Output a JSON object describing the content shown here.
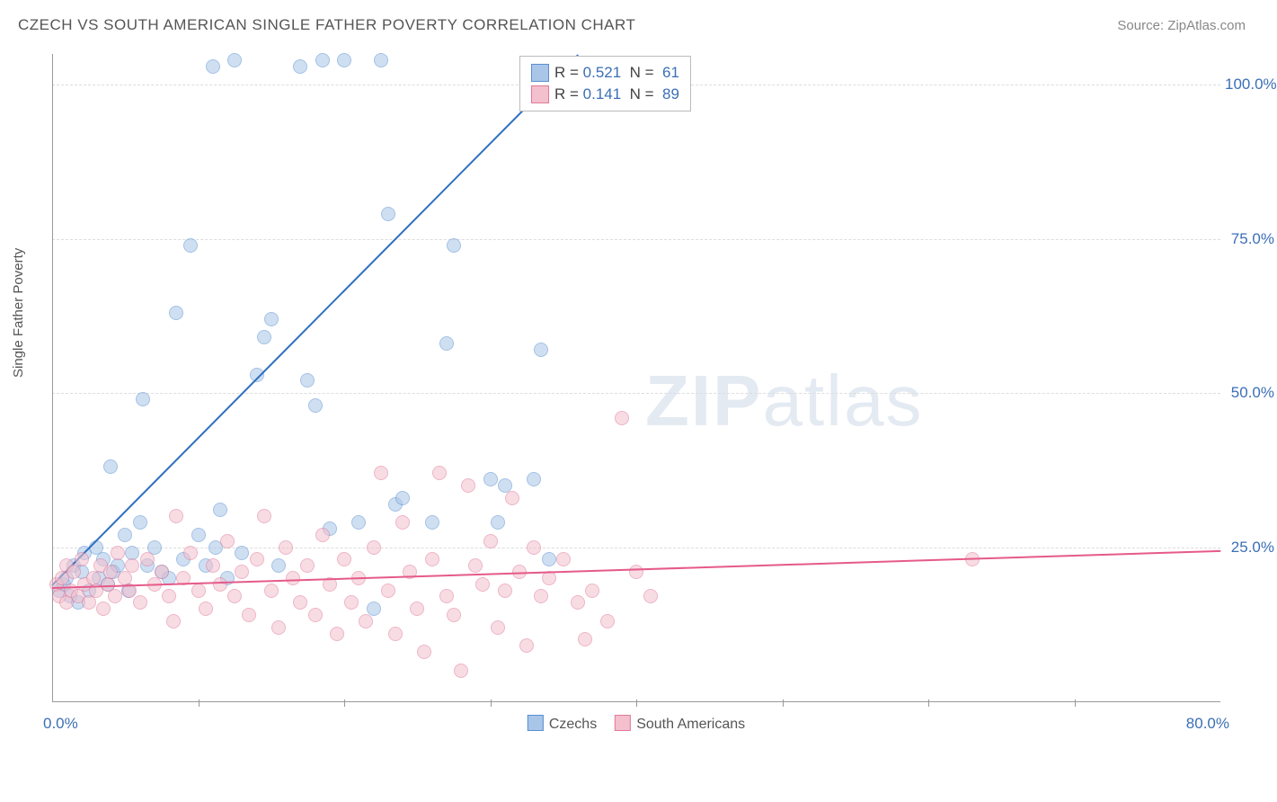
{
  "header": {
    "title": "CZECH VS SOUTH AMERICAN SINGLE FATHER POVERTY CORRELATION CHART",
    "source_prefix": "Source: ",
    "source_name": "ZipAtlas.com"
  },
  "chart": {
    "type": "scatter",
    "ylabel": "Single Father Poverty",
    "xlim": [
      0,
      80
    ],
    "ylim": [
      0,
      105
    ],
    "xtick_labels": [
      "0.0%",
      "80.0%"
    ],
    "xtick_positions": [
      0,
      80
    ],
    "xtick_minor": [
      10,
      20,
      30,
      40,
      50,
      60,
      70
    ],
    "ytick_labels": [
      "25.0%",
      "50.0%",
      "75.0%",
      "100.0%"
    ],
    "ytick_positions": [
      25,
      50,
      75,
      100
    ],
    "grid_color": "#dddddd",
    "axis_color": "#999999",
    "label_color": "#3b6fb6",
    "background_color": "#ffffff",
    "marker_radius": 8,
    "marker_opacity": 0.55,
    "watermark": {
      "zip": "ZIP",
      "atlas": "atlas"
    },
    "series": [
      {
        "name": "Czechs",
        "color_fill": "#a9c6e8",
        "color_stroke": "#5a8fd0",
        "trend_color": "#2e6fc0",
        "trend": {
          "x1": 0,
          "y1": 19,
          "x2": 36,
          "y2": 105
        },
        "r_label": "R =",
        "r_value": "0.521",
        "n_label": "N =",
        "n_value": "61",
        "points": [
          [
            0.5,
            18
          ],
          [
            0.8,
            19
          ],
          [
            1,
            20
          ],
          [
            1.2,
            17
          ],
          [
            1.5,
            22
          ],
          [
            1.8,
            16
          ],
          [
            2,
            21
          ],
          [
            2.2,
            24
          ],
          [
            2.5,
            18
          ],
          [
            3,
            25
          ],
          [
            3.2,
            20
          ],
          [
            3.5,
            23
          ],
          [
            3.8,
            19
          ],
          [
            4,
            38
          ],
          [
            4.2,
            21
          ],
          [
            4.5,
            22
          ],
          [
            5,
            27
          ],
          [
            5.2,
            18
          ],
          [
            5.5,
            24
          ],
          [
            6,
            29
          ],
          [
            6.2,
            49
          ],
          [
            6.5,
            22
          ],
          [
            7,
            25
          ],
          [
            7.5,
            21
          ],
          [
            8,
            20
          ],
          [
            8.5,
            63
          ],
          [
            9,
            23
          ],
          [
            9.5,
            74
          ],
          [
            10,
            27
          ],
          [
            10.5,
            22
          ],
          [
            11,
            103
          ],
          [
            11.2,
            25
          ],
          [
            11.5,
            31
          ],
          [
            12,
            20
          ],
          [
            12.5,
            104
          ],
          [
            13,
            24
          ],
          [
            14,
            53
          ],
          [
            14.5,
            59
          ],
          [
            15,
            62
          ],
          [
            15.5,
            22
          ],
          [
            17,
            103
          ],
          [
            17.5,
            52
          ],
          [
            18,
            48
          ],
          [
            18.5,
            104
          ],
          [
            19,
            28
          ],
          [
            20,
            104
          ],
          [
            21,
            29
          ],
          [
            22,
            15
          ],
          [
            22.5,
            104
          ],
          [
            23,
            79
          ],
          [
            23.5,
            32
          ],
          [
            24,
            33
          ],
          [
            26,
            29
          ],
          [
            27,
            58
          ],
          [
            27.5,
            74
          ],
          [
            30,
            36
          ],
          [
            30.5,
            29
          ],
          [
            31,
            35
          ],
          [
            33,
            36
          ],
          [
            33.5,
            57
          ],
          [
            34,
            23
          ]
        ]
      },
      {
        "name": "South Americans",
        "color_fill": "#f4c0cd",
        "color_stroke": "#e07a9a",
        "trend_color": "#e55a8a",
        "trend": {
          "x1": 0,
          "y1": 18.5,
          "x2": 80,
          "y2": 24.5
        },
        "r_label": "R =",
        "r_value": "0.141",
        "n_label": "N =",
        "n_value": "89",
        "points": [
          [
            0.3,
            19
          ],
          [
            0.5,
            17
          ],
          [
            0.7,
            20
          ],
          [
            1,
            22
          ],
          [
            1.0,
            16
          ],
          [
            1.3,
            18
          ],
          [
            1.5,
            21
          ],
          [
            1.8,
            17
          ],
          [
            2,
            23
          ],
          [
            2.2,
            19
          ],
          [
            2.5,
            16
          ],
          [
            2.8,
            20
          ],
          [
            3,
            18
          ],
          [
            3.3,
            22
          ],
          [
            3.5,
            15
          ],
          [
            3.8,
            19
          ],
          [
            4,
            21
          ],
          [
            4.3,
            17
          ],
          [
            4.5,
            24
          ],
          [
            5,
            20
          ],
          [
            5.3,
            18
          ],
          [
            5.5,
            22
          ],
          [
            6,
            16
          ],
          [
            6.5,
            23
          ],
          [
            7,
            19
          ],
          [
            7.5,
            21
          ],
          [
            8,
            17
          ],
          [
            8.3,
            13
          ],
          [
            8.5,
            30
          ],
          [
            9,
            20
          ],
          [
            9.5,
            24
          ],
          [
            10,
            18
          ],
          [
            10.5,
            15
          ],
          [
            11,
            22
          ],
          [
            11.5,
            19
          ],
          [
            12,
            26
          ],
          [
            12.5,
            17
          ],
          [
            13,
            21
          ],
          [
            13.5,
            14
          ],
          [
            14,
            23
          ],
          [
            14.5,
            30
          ],
          [
            15,
            18
          ],
          [
            15.5,
            12
          ],
          [
            16,
            25
          ],
          [
            16.5,
            20
          ],
          [
            17,
            16
          ],
          [
            17.5,
            22
          ],
          [
            18,
            14
          ],
          [
            18.5,
            27
          ],
          [
            19,
            19
          ],
          [
            19.5,
            11
          ],
          [
            20,
            23
          ],
          [
            20.5,
            16
          ],
          [
            21,
            20
          ],
          [
            21.5,
            13
          ],
          [
            22,
            25
          ],
          [
            22.5,
            37
          ],
          [
            23,
            18
          ],
          [
            23.5,
            11
          ],
          [
            24,
            29
          ],
          [
            24.5,
            21
          ],
          [
            25,
            15
          ],
          [
            25.5,
            8
          ],
          [
            26,
            23
          ],
          [
            26.5,
            37
          ],
          [
            27,
            17
          ],
          [
            27.5,
            14
          ],
          [
            28,
            5
          ],
          [
            28.5,
            35
          ],
          [
            29,
            22
          ],
          [
            29.5,
            19
          ],
          [
            30,
            26
          ],
          [
            30.5,
            12
          ],
          [
            31,
            18
          ],
          [
            31.5,
            33
          ],
          [
            32,
            21
          ],
          [
            32.5,
            9
          ],
          [
            33,
            25
          ],
          [
            33.5,
            17
          ],
          [
            34,
            20
          ],
          [
            35,
            23
          ],
          [
            36,
            16
          ],
          [
            36.5,
            10
          ],
          [
            37,
            18
          ],
          [
            38,
            13
          ],
          [
            39,
            46
          ],
          [
            40,
            21
          ],
          [
            41,
            17
          ],
          [
            63,
            23
          ]
        ]
      }
    ],
    "legend_bottom": [
      {
        "label": "Czechs",
        "fill": "#a9c6e8",
        "stroke": "#5a8fd0"
      },
      {
        "label": "South Americans",
        "fill": "#f4c0cd",
        "stroke": "#e07a9a"
      }
    ]
  }
}
